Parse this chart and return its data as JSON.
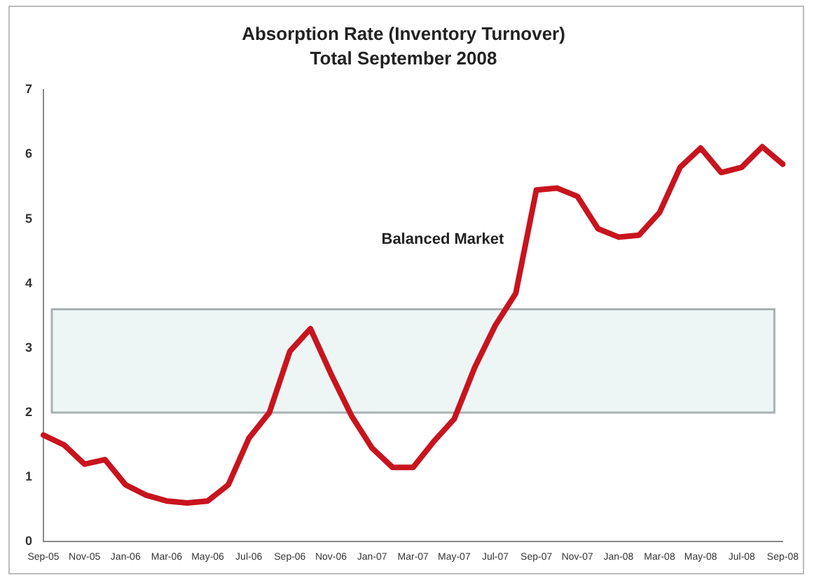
{
  "chart_data": {
    "type": "line",
    "title": "Absorption Rate (Inventory Turnover)",
    "subtitle": "Total September 2008",
    "categories": [
      "Sep-05",
      null,
      "Nov-05",
      null,
      "Jan-06",
      null,
      "Mar-06",
      null,
      "May-06",
      null,
      "Jul-06",
      null,
      "Sep-06",
      null,
      "Nov-06",
      null,
      "Jan-07",
      null,
      "Mar-07",
      null,
      "May-07",
      null,
      "Jul-07",
      null,
      "Sep-07",
      null,
      "Nov-07",
      null,
      "Jan-08",
      null,
      "Mar-08",
      null,
      "May-08",
      null,
      "Jul-08",
      null,
      "Sep-08"
    ],
    "series": [
      {
        "color": "#c8141e",
        "values": [
          1.65,
          1.5,
          1.2,
          1.27,
          0.88,
          0.72,
          0.63,
          0.6,
          0.63,
          0.88,
          1.6,
          2.0,
          2.95,
          3.3,
          2.6,
          1.95,
          1.45,
          1.15,
          1.15,
          1.55,
          1.9,
          2.7,
          3.35,
          3.85,
          5.45,
          5.48,
          5.35,
          4.85,
          4.72,
          4.75,
          5.1,
          5.8,
          6.1,
          5.72,
          5.8,
          6.12,
          5.85
        ]
      }
    ],
    "ylim": [
      0,
      7
    ],
    "yticks": [
      0,
      1,
      2,
      3,
      4,
      5,
      6,
      7
    ],
    "grid": false,
    "legend": false,
    "marker": "none",
    "line_style": "solid",
    "annotations": [
      "Balanced Market"
    ],
    "bands": [
      {
        "axis": "y",
        "from": 2,
        "to": 3.6,
        "color": "#eef5f5"
      }
    ]
  }
}
